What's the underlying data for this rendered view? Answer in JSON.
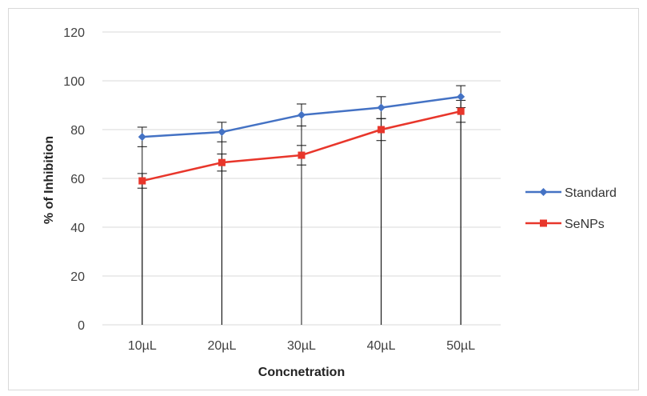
{
  "chart_data": {
    "type": "line",
    "title": "",
    "xlabel": "Concnetration",
    "ylabel": "% of Inhibition",
    "categories": [
      "10µL",
      "20µL",
      "30µL",
      "40µL",
      "50µL"
    ],
    "ylim": [
      0,
      120
    ],
    "yticks": [
      0,
      20,
      40,
      60,
      80,
      100,
      120
    ],
    "grid": true,
    "legend": "right",
    "error_bars": "from each point down to 0 and up with a small cap",
    "series": [
      {
        "name": "Standard",
        "color": "#4472C4",
        "marker": "diamond-icon",
        "values": [
          77,
          79,
          86,
          89,
          93.5
        ],
        "err_upper": [
          4,
          4,
          4.5,
          4.5,
          4.5
        ]
      },
      {
        "name": "SeNPs",
        "color": "#E8362B",
        "marker": "square-icon",
        "values": [
          59,
          66.5,
          69.5,
          80,
          87.5
        ],
        "err_upper": [
          3,
          3.5,
          4,
          4.5,
          4.5
        ]
      }
    ]
  }
}
